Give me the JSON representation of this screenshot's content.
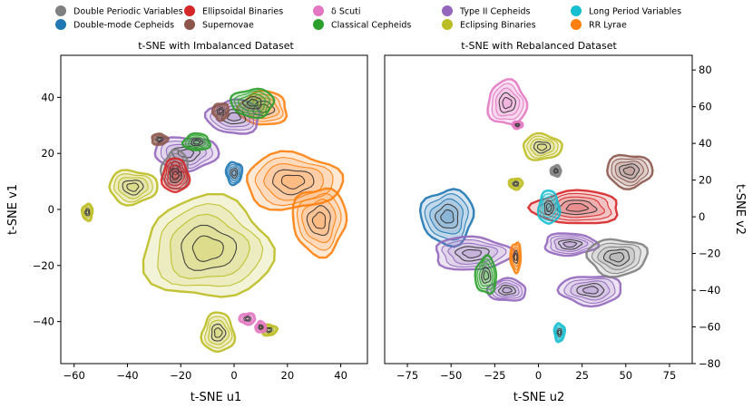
{
  "legend": [
    {
      "label": "Double Periodic Variables",
      "color": "#7f7f7f"
    },
    {
      "label": "Double-mode Cepheids",
      "color": "#1f77b4"
    },
    {
      "label": "Ellipsoidal Binaries",
      "color": "#d62728"
    },
    {
      "label": "Supernovae",
      "color": "#8c564b"
    },
    {
      "label": "δ Scuti",
      "color": "#e377c2"
    },
    {
      "label": "Classical Cepheids",
      "color": "#2ca02c"
    },
    {
      "label": "Type II Cepheids",
      "color": "#9467bd"
    },
    {
      "label": "Eclipsing Binaries",
      "color": "#bcbd22"
    },
    {
      "label": "Long Period Variables",
      "color": "#17becf"
    },
    {
      "label": "RR Lyrae",
      "color": "#ff7f0e"
    }
  ],
  "chart_data": [
    {
      "type": "scatter",
      "subtype": "kde-contour",
      "title": "t-SNE with Imbalanced Dataset",
      "xlabel": "t-SNE u1",
      "ylabel": "t-SNE v1",
      "xlim": [
        -65,
        50
      ],
      "ylim": [
        -55,
        55
      ],
      "xticks": [
        -60,
        -40,
        -20,
        0,
        20,
        40
      ],
      "yticks": [
        -40,
        -20,
        0,
        20,
        40
      ],
      "ytick_side": "left",
      "grid": false,
      "series": [
        {
          "name": "Eclipsing Binaries",
          "color": "#bcbd22",
          "clusters": [
            {
              "x": -10,
              "y": -14,
              "rx": 24,
              "ry": 18
            },
            {
              "x": -38,
              "y": 8,
              "rx": 9,
              "ry": 6
            },
            {
              "x": -55,
              "y": -1,
              "rx": 2,
              "ry": 3
            },
            {
              "x": -6,
              "y": -44,
              "rx": 6,
              "ry": 7
            },
            {
              "x": 13,
              "y": -43,
              "rx": 3,
              "ry": 2
            }
          ]
        },
        {
          "name": "RR Lyrae",
          "color": "#ff7f0e",
          "clusters": [
            {
              "x": 22,
              "y": 10,
              "rx": 18,
              "ry": 10
            },
            {
              "x": 32,
              "y": -4,
              "rx": 10,
              "ry": 12
            },
            {
              "x": 11,
              "y": 36,
              "rx": 9,
              "ry": 6
            }
          ]
        },
        {
          "name": "Type II Cepheids",
          "color": "#9467bd",
          "clusters": [
            {
              "x": -18,
              "y": 20,
              "rx": 12,
              "ry": 6
            },
            {
              "x": 0,
              "y": 33,
              "rx": 10,
              "ry": 6
            }
          ]
        },
        {
          "name": "Classical Cepheids",
          "color": "#2ca02c",
          "clusters": [
            {
              "x": 7,
              "y": 38,
              "rx": 8,
              "ry": 5
            },
            {
              "x": -14,
              "y": 24,
              "rx": 5,
              "ry": 3
            }
          ]
        },
        {
          "name": "Double Periodic Variables",
          "color": "#7f7f7f",
          "clusters": [
            {
              "x": -22,
              "y": 14,
              "rx": 5,
              "ry": 7
            }
          ]
        },
        {
          "name": "Ellipsoidal Binaries",
          "color": "#d62728",
          "clusters": [
            {
              "x": -22,
              "y": 12,
              "rx": 5,
              "ry": 6
            }
          ]
        },
        {
          "name": "Supernovae",
          "color": "#8c564b",
          "clusters": [
            {
              "x": -28,
              "y": 25,
              "rx": 3,
              "ry": 2
            },
            {
              "x": -5,
              "y": 35,
              "rx": 3,
              "ry": 3
            }
          ]
        },
        {
          "name": "Double-mode Cepheids",
          "color": "#1f77b4",
          "clusters": [
            {
              "x": 0,
              "y": 13,
              "rx": 3,
              "ry": 4
            }
          ]
        },
        {
          "name": "δ Scuti",
          "color": "#e377c2",
          "clusters": [
            {
              "x": 5,
              "y": -39,
              "rx": 3,
              "ry": 2
            },
            {
              "x": 10,
              "y": -42,
              "rx": 2,
              "ry": 2
            }
          ]
        }
      ]
    },
    {
      "type": "scatter",
      "subtype": "kde-contour",
      "title": "t-SNE with Rebalanced Dataset",
      "xlabel": "t-SNE u2",
      "ylabel": "t-SNE v2",
      "xlim": [
        -88,
        88
      ],
      "ylim": [
        -80,
        88
      ],
      "xticks": [
        -75,
        -50,
        -25,
        0,
        25,
        50,
        75
      ],
      "yticks": [
        -80,
        -60,
        -40,
        -20,
        0,
        20,
        40,
        60,
        80
      ],
      "ytick_side": "right",
      "grid": false,
      "series": [
        {
          "name": "δ Scuti",
          "color": "#e377c2",
          "clusters": [
            {
              "x": -18,
              "y": 62,
              "rx": 11,
              "ry": 12
            },
            {
              "x": -12,
              "y": 50,
              "rx": 3,
              "ry": 2
            }
          ]
        },
        {
          "name": "Eclipsing Binaries",
          "color": "#bcbd22",
          "clusters": [
            {
              "x": 2,
              "y": 38,
              "rx": 11,
              "ry": 7
            },
            {
              "x": -13,
              "y": 18,
              "rx": 4,
              "ry": 3
            }
          ]
        },
        {
          "name": "Supernovae",
          "color": "#8c564b",
          "clusters": [
            {
              "x": 52,
              "y": 25,
              "rx": 13,
              "ry": 9
            }
          ]
        },
        {
          "name": "Double-mode Cepheids",
          "color": "#1f77b4",
          "clusters": [
            {
              "x": -52,
              "y": 0,
              "rx": 15,
              "ry": 15
            }
          ]
        },
        {
          "name": "Ellipsoidal Binaries",
          "color": "#d62728",
          "clusters": [
            {
              "x": 22,
              "y": 5,
              "rx": 25,
              "ry": 9
            }
          ]
        },
        {
          "name": "Long Period Variables",
          "color": "#17becf",
          "clusters": [
            {
              "x": 6,
              "y": 5,
              "rx": 6,
              "ry": 9
            },
            {
              "x": 12,
              "y": -63,
              "rx": 3,
              "ry": 5
            }
          ]
        },
        {
          "name": "Type II Cepheids",
          "color": "#9467bd",
          "clusters": [
            {
              "x": -38,
              "y": -20,
              "rx": 22,
              "ry": 9
            },
            {
              "x": 30,
              "y": -40,
              "rx": 18,
              "ry": 8
            },
            {
              "x": -18,
              "y": -40,
              "rx": 11,
              "ry": 6
            },
            {
              "x": 18,
              "y": -15,
              "rx": 15,
              "ry": 6
            }
          ]
        },
        {
          "name": "Double Periodic Variables",
          "color": "#7f7f7f",
          "clusters": [
            {
              "x": 45,
              "y": -22,
              "rx": 17,
              "ry": 10
            },
            {
              "x": 10,
              "y": 25,
              "rx": 3,
              "ry": 3
            }
          ]
        },
        {
          "name": "RR Lyrae",
          "color": "#ff7f0e",
          "clusters": [
            {
              "x": -13,
              "y": -22,
              "rx": 3,
              "ry": 8
            }
          ]
        },
        {
          "name": "Classical Cepheids",
          "color": "#2ca02c",
          "clusters": [
            {
              "x": -30,
              "y": -32,
              "rx": 6,
              "ry": 10
            }
          ]
        }
      ]
    }
  ]
}
